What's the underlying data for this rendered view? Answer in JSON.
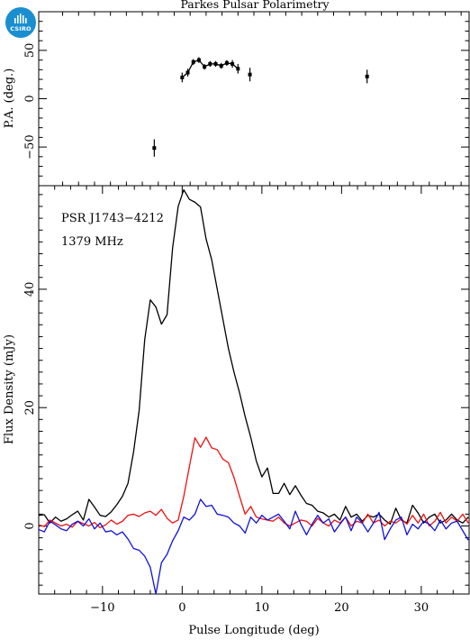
{
  "figure_title": "Parkes Pulsar Polarimetry",
  "logo": {
    "text": "CSIRO",
    "color": "#1a8fd0",
    "icon": "csiro-logo-icon"
  },
  "chart_data": [
    {
      "type": "scatter",
      "name": "pa-panel",
      "ylabel": "P.A. (deg.)",
      "xlim": [
        -18,
        36
      ],
      "ylim": [
        -90,
        90
      ],
      "yticks": [
        -50,
        0,
        50
      ],
      "xticks": [
        -10,
        0,
        10,
        20,
        30
      ],
      "points": [
        {
          "x": -3.5,
          "y": -51,
          "err": 9
        },
        {
          "x": 0.0,
          "y": 22,
          "err": 5
        },
        {
          "x": 0.7,
          "y": 27,
          "err": 4
        },
        {
          "x": 1.4,
          "y": 38,
          "err": 3
        },
        {
          "x": 2.1,
          "y": 40,
          "err": 3
        },
        {
          "x": 2.8,
          "y": 33,
          "err": 3
        },
        {
          "x": 3.5,
          "y": 36,
          "err": 3
        },
        {
          "x": 4.2,
          "y": 36,
          "err": 3
        },
        {
          "x": 4.9,
          "y": 34,
          "err": 3
        },
        {
          "x": 5.6,
          "y": 37,
          "err": 3
        },
        {
          "x": 6.3,
          "y": 36,
          "err": 4
        },
        {
          "x": 7.0,
          "y": 31,
          "err": 5
        },
        {
          "x": 8.5,
          "y": 25,
          "err": 7
        },
        {
          "x": 23.2,
          "y": 23,
          "err": 7
        }
      ],
      "line_points": [
        0.0,
        0.7,
        1.4,
        2.1,
        2.8,
        3.5,
        4.2,
        4.9,
        5.6,
        6.3,
        7.0
      ]
    },
    {
      "type": "line",
      "name": "flux-panel",
      "xlabel": "Pulse Longitude (deg)",
      "ylabel": "Flux Density (mJy)",
      "annotations": [
        "PSR J1743−4212",
        "1379 MHz"
      ],
      "xlim": [
        -18,
        36
      ],
      "ylim": [
        -11.5,
        57.5
      ],
      "yticks": [
        0,
        20,
        40
      ],
      "xticks": [
        -10,
        0,
        10,
        20,
        30
      ],
      "series": [
        {
          "color": "#000000",
          "x": [
            -18.0,
            -17.3,
            -16.6,
            -15.9,
            -15.2,
            -14.5,
            -13.8,
            -13.1,
            -12.4,
            -11.7,
            -11.0,
            -10.3,
            -9.6,
            -8.9,
            -8.2,
            -7.5,
            -6.8,
            -6.1,
            -5.4,
            -4.7,
            -4.0,
            -3.3,
            -2.6,
            -1.9,
            -1.2,
            -0.5,
            0.2,
            0.9,
            1.6,
            2.3,
            3.0,
            3.7,
            4.4,
            5.1,
            5.8,
            6.5,
            7.2,
            7.9,
            8.6,
            9.3,
            10.0,
            10.7,
            11.4,
            12.1,
            12.8,
            13.5,
            14.2,
            14.9,
            15.6,
            16.3,
            17.0,
            17.7,
            18.4,
            19.1,
            19.8,
            20.5,
            21.2,
            21.9,
            22.6,
            23.3,
            24.0,
            24.7,
            25.4,
            26.1,
            26.8,
            27.5,
            28.2,
            28.9,
            29.6,
            30.3,
            31.0,
            31.7,
            32.4,
            33.1,
            33.8,
            34.5,
            35.2,
            35.9
          ],
          "y": [
            1.8,
            1.9,
            0.5,
            1.5,
            0.8,
            1.2,
            1.9,
            2.5,
            1.0,
            4.5,
            3.2,
            1.8,
            1.6,
            2.4,
            3.6,
            5.0,
            7.2,
            12.5,
            19.5,
            31.5,
            38.2,
            37.0,
            34.1,
            35.7,
            47.0,
            54.0,
            56.8,
            55.2,
            54.7,
            53.9,
            48.5,
            45.0,
            40.0,
            35.0,
            30.0,
            26.0,
            22.5,
            18.5,
            15.0,
            11.0,
            8.3,
            9.8,
            5.5,
            5.5,
            7.2,
            5.3,
            6.8,
            5.2,
            3.8,
            3.5,
            2.5,
            2.2,
            1.5,
            2.0,
            1.0,
            3.3,
            1.5,
            2.0,
            0.8,
            1.8,
            1.5,
            2.0,
            1.0,
            0.3,
            3.0,
            1.0,
            0.5,
            3.5,
            2.2,
            0.5,
            1.5,
            2.0,
            0.5,
            1.0,
            2.0,
            1.0,
            0.5,
            1.5
          ]
        },
        {
          "color": "#ee1111",
          "x": [
            -18.0,
            -17.3,
            -16.6,
            -15.9,
            -15.2,
            -14.5,
            -13.8,
            -13.1,
            -12.4,
            -11.7,
            -11.0,
            -10.3,
            -9.6,
            -8.9,
            -8.2,
            -7.5,
            -6.8,
            -6.1,
            -5.4,
            -4.7,
            -4.0,
            -3.3,
            -2.6,
            -1.9,
            -1.2,
            -0.5,
            0.2,
            0.9,
            1.6,
            2.3,
            3.0,
            3.7,
            4.4,
            5.1,
            5.8,
            6.5,
            7.2,
            7.9,
            8.6,
            9.3,
            10.0,
            10.7,
            11.4,
            12.1,
            12.8,
            13.5,
            14.2,
            14.9,
            15.6,
            16.3,
            17.0,
            17.7,
            18.4,
            19.1,
            19.8,
            20.5,
            21.2,
            21.9,
            22.6,
            23.3,
            24.0,
            24.7,
            25.4,
            26.1,
            26.8,
            27.5,
            28.2,
            28.9,
            29.6,
            30.3,
            31.0,
            31.7,
            32.4,
            33.1,
            33.8,
            34.5,
            35.2,
            35.9
          ],
          "y": [
            0.2,
            -0.1,
            1.0,
            0.5,
            0.0,
            0.3,
            -0.2,
            0.8,
            0.4,
            0.0,
            0.6,
            -0.3,
            0.2,
            1.0,
            0.3,
            0.8,
            1.8,
            2.0,
            1.6,
            2.2,
            2.5,
            1.8,
            2.8,
            1.3,
            0.5,
            1.0,
            5.0,
            10.0,
            14.9,
            13.3,
            15.0,
            13.2,
            12.9,
            11.3,
            10.7,
            8.2,
            5.0,
            2.0,
            3.3,
            1.5,
            1.2,
            1.0,
            0.8,
            1.5,
            0.5,
            0.0,
            0.5,
            1.0,
            0.8,
            0.0,
            1.3,
            0.5,
            0.0,
            1.0,
            0.5,
            1.5,
            0.0,
            0.8,
            0.5,
            2.0,
            0.5,
            1.0,
            0.0,
            0.8,
            0.5,
            1.2,
            0.3,
            1.8,
            0.5,
            2.0,
            0.0,
            0.8,
            2.3,
            0.5,
            1.5,
            0.8,
            2.0,
            0.5
          ]
        },
        {
          "color": "#1111dd",
          "x": [
            -18.0,
            -17.3,
            -16.6,
            -15.9,
            -15.2,
            -14.5,
            -13.8,
            -13.1,
            -12.4,
            -11.7,
            -11.0,
            -10.3,
            -9.6,
            -8.9,
            -8.2,
            -7.5,
            -6.8,
            -6.1,
            -5.4,
            -4.7,
            -4.0,
            -3.3,
            -2.6,
            -1.9,
            -1.2,
            -0.5,
            0.2,
            0.9,
            1.6,
            2.3,
            3.0,
            3.7,
            4.4,
            5.1,
            5.8,
            6.5,
            7.2,
            7.9,
            8.6,
            9.3,
            10.0,
            10.7,
            11.4,
            12.1,
            12.8,
            13.5,
            14.2,
            14.9,
            15.6,
            16.3,
            17.0,
            17.7,
            18.4,
            19.1,
            19.8,
            20.5,
            21.2,
            21.9,
            22.6,
            23.3,
            24.0,
            24.7,
            25.4,
            26.1,
            26.8,
            27.5,
            28.2,
            28.9,
            29.6,
            30.3,
            31.0,
            31.7,
            32.4,
            33.1,
            33.8,
            34.5,
            35.2,
            35.9
          ],
          "y": [
            -0.6,
            -1.0,
            0.8,
            0.2,
            -0.5,
            -0.8,
            0.3,
            0.8,
            0.0,
            1.2,
            -0.5,
            0.5,
            -1.0,
            -0.8,
            -1.5,
            -1.0,
            -2.2,
            -3.8,
            -4.1,
            -5.1,
            -7.0,
            -11.5,
            -6.2,
            -4.8,
            -2.5,
            -0.8,
            1.5,
            1.0,
            2.0,
            4.5,
            3.3,
            3.5,
            2.0,
            1.8,
            1.5,
            0.5,
            0.0,
            -1.2,
            1.5,
            0.5,
            1.8,
            1.0,
            1.5,
            2.0,
            0.8,
            -0.5,
            2.5,
            0.3,
            -1.5,
            0.3,
            1.8,
            0.5,
            1.2,
            -1.0,
            0.3,
            1.5,
            -0.8,
            1.5,
            0.5,
            -1.0,
            0.5,
            2.3,
            -2.3,
            -0.5,
            1.0,
            1.5,
            -1.5,
            0.3,
            -0.5,
            0.8,
            0.3,
            -0.8,
            1.0,
            -0.5,
            0.5,
            0.8,
            -0.8,
            -2.4
          ]
        }
      ]
    }
  ]
}
